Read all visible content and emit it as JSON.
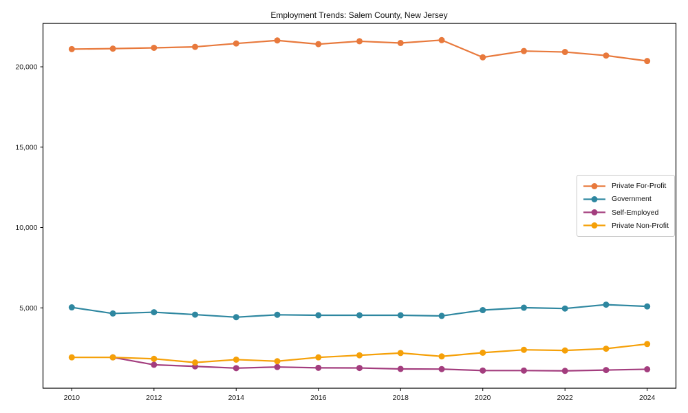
{
  "background": "#ffffff",
  "axis_color": "#000000",
  "chart_data": {
    "type": "line",
    "title": "Employment Trends: Salem County, New Jersey",
    "xlabel": "",
    "ylabel": "",
    "x": [
      2010,
      2011,
      2012,
      2013,
      2014,
      2015,
      2016,
      2017,
      2018,
      2019,
      2020,
      2021,
      2022,
      2023,
      2024
    ],
    "series": [
      {
        "name": "Private For-Profit",
        "color": "#E8793C",
        "values": [
          21100,
          21130,
          21180,
          21240,
          21450,
          21640,
          21410,
          21590,
          21480,
          21660,
          20590,
          20980,
          20920,
          20700,
          20360
        ]
      },
      {
        "name": "Government",
        "color": "#2E87A0",
        "values": [
          5030,
          4650,
          4730,
          4580,
          4420,
          4570,
          4540,
          4540,
          4540,
          4500,
          4860,
          5010,
          4960,
          5200,
          5090
        ]
      },
      {
        "name": "Self-Employed",
        "color": "#A33D7E",
        "values": [
          null,
          1920,
          1460,
          1360,
          1250,
          1320,
          1270,
          1260,
          1200,
          1190,
          1100,
          1100,
          1080,
          1130,
          1180
        ]
      },
      {
        "name": "Private Non-Profit",
        "color": "#F5A008",
        "values": [
          1920,
          1920,
          1830,
          1600,
          1780,
          1680,
          1920,
          2050,
          2190,
          1980,
          2210,
          2390,
          2350,
          2460,
          2750
        ]
      }
    ],
    "xticks": {
      "values": [
        2010,
        2012,
        2014,
        2016,
        2018,
        2020,
        2022,
        2024
      ],
      "labels": [
        "2010",
        "2012",
        "2014",
        "2016",
        "2018",
        "2020",
        "2022",
        "2024"
      ]
    },
    "yticks": {
      "values": [
        5000,
        10000,
        15000,
        20000
      ],
      "labels": [
        "5,000",
        "10,000",
        "15,000",
        "20,000"
      ]
    },
    "xlim": [
      2009.3,
      2024.7
    ],
    "ylim": [
      0,
      22700
    ],
    "grid": false,
    "legend_position": "center-right",
    "marker": "circle",
    "line_width": 2.2
  }
}
